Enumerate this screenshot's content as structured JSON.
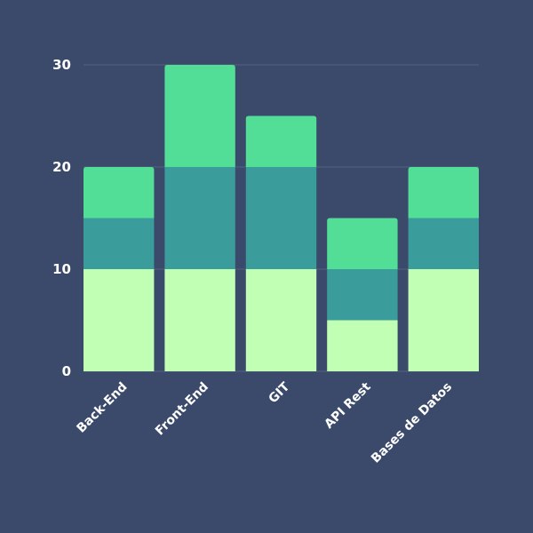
{
  "chart_data": {
    "type": "bar",
    "stacked": true,
    "categories": [
      "Back-End",
      "Front-End",
      "GIT",
      "API Rest",
      "Bases de Datos"
    ],
    "series": [
      {
        "values": [
          10,
          10,
          10,
          5,
          10
        ],
        "color": "#c0ffb4"
      },
      {
        "values": [
          5,
          10,
          10,
          5,
          5
        ],
        "color": "#3a9c9b"
      },
      {
        "values": [
          5,
          10,
          5,
          5,
          5
        ],
        "color": "#52de97"
      }
    ],
    "yticks": [
      0,
      10,
      20,
      30
    ],
    "ylim": [
      0,
      30
    ],
    "grid": true,
    "legend": "none",
    "colors": {
      "background": "#3b4a6b",
      "grid": "#56627f",
      "text": "#ffffff"
    }
  }
}
